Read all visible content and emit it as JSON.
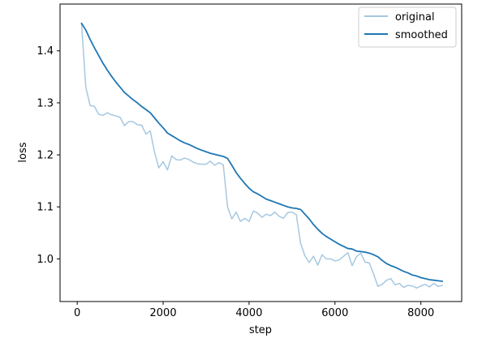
{
  "chart_data": {
    "type": "line",
    "xlabel": "step",
    "ylabel": "loss",
    "xlim": [
      -400,
      8950
    ],
    "ylim": [
      0.918,
      1.49
    ],
    "xticks": [
      0,
      2000,
      4000,
      6000,
      8000
    ],
    "xtick_labels": [
      "0",
      "2000",
      "4000",
      "6000",
      "8000"
    ],
    "yticks": [
      1.0,
      1.1,
      1.2,
      1.3,
      1.4
    ],
    "ytick_labels": [
      "1.0",
      "1.1",
      "1.2",
      "1.3",
      "1.4"
    ],
    "grid": false,
    "legend_position": "top-right",
    "series": [
      {
        "name": "original",
        "color": "#a6c8e0",
        "linewidth": 1.5,
        "x": [
          100,
          200,
          300,
          400,
          500,
          600,
          700,
          800,
          900,
          1000,
          1100,
          1200,
          1300,
          1400,
          1500,
          1600,
          1700,
          1800,
          1900,
          2000,
          2100,
          2200,
          2300,
          2400,
          2500,
          2600,
          2700,
          2800,
          2900,
          3000,
          3100,
          3200,
          3300,
          3400,
          3500,
          3600,
          3700,
          3800,
          3900,
          4000,
          4100,
          4200,
          4300,
          4400,
          4500,
          4600,
          4700,
          4800,
          4900,
          5000,
          5100,
          5200,
          5300,
          5400,
          5500,
          5600,
          5700,
          5800,
          5900,
          6000,
          6100,
          6200,
          6300,
          6400,
          6500,
          6600,
          6700,
          6800,
          6900,
          7000,
          7100,
          7200,
          7300,
          7400,
          7500,
          7600,
          7700,
          7800,
          7900,
          8000,
          8100,
          8200,
          8300,
          8400,
          8500
        ],
        "y": [
          1.453,
          1.33,
          1.295,
          1.293,
          1.278,
          1.276,
          1.281,
          1.277,
          1.275,
          1.272,
          1.256,
          1.264,
          1.264,
          1.258,
          1.257,
          1.24,
          1.246,
          1.205,
          1.175,
          1.187,
          1.171,
          1.198,
          1.191,
          1.19,
          1.194,
          1.191,
          1.186,
          1.183,
          1.182,
          1.182,
          1.188,
          1.18,
          1.185,
          1.181,
          1.1,
          1.077,
          1.09,
          1.072,
          1.078,
          1.072,
          1.092,
          1.088,
          1.08,
          1.086,
          1.083,
          1.09,
          1.082,
          1.078,
          1.089,
          1.09,
          1.085,
          1.03,
          1.006,
          0.993,
          1.005,
          0.988,
          1.008,
          1.0,
          1.0,
          0.996,
          0.998,
          1.005,
          1.012,
          0.987,
          1.004,
          1.011,
          0.994,
          0.992,
          0.971,
          0.947,
          0.951,
          0.959,
          0.962,
          0.95,
          0.953,
          0.945,
          0.949,
          0.948,
          0.944,
          0.948,
          0.951,
          0.946,
          0.953,
          0.947,
          0.949
        ]
      },
      {
        "name": "smoothed",
        "color": "#1f77b4",
        "linewidth": 1.8,
        "x": [
          100,
          200,
          300,
          400,
          500,
          600,
          700,
          800,
          900,
          1000,
          1100,
          1200,
          1300,
          1400,
          1500,
          1600,
          1700,
          1800,
          1900,
          2000,
          2100,
          2200,
          2300,
          2400,
          2500,
          2600,
          2700,
          2800,
          2900,
          3000,
          3100,
          3200,
          3300,
          3400,
          3500,
          3600,
          3700,
          3800,
          3900,
          4000,
          4100,
          4200,
          4300,
          4400,
          4500,
          4600,
          4700,
          4800,
          4900,
          5000,
          5100,
          5200,
          5300,
          5400,
          5500,
          5600,
          5700,
          5800,
          5900,
          6000,
          6100,
          6200,
          6300,
          6400,
          6500,
          6600,
          6700,
          6800,
          6900,
          7000,
          7100,
          7200,
          7300,
          7400,
          7500,
          7600,
          7700,
          7800,
          7900,
          8000,
          8100,
          8200,
          8300,
          8400,
          8500
        ],
        "y": [
          1.453,
          1.44,
          1.422,
          1.406,
          1.391,
          1.376,
          1.363,
          1.351,
          1.34,
          1.33,
          1.32,
          1.313,
          1.306,
          1.3,
          1.293,
          1.287,
          1.281,
          1.271,
          1.261,
          1.252,
          1.242,
          1.237,
          1.232,
          1.227,
          1.223,
          1.22,
          1.216,
          1.212,
          1.209,
          1.206,
          1.203,
          1.201,
          1.199,
          1.197,
          1.193,
          1.18,
          1.166,
          1.155,
          1.145,
          1.136,
          1.129,
          1.125,
          1.12,
          1.115,
          1.112,
          1.109,
          1.106,
          1.103,
          1.1,
          1.098,
          1.097,
          1.095,
          1.086,
          1.077,
          1.066,
          1.057,
          1.049,
          1.043,
          1.038,
          1.033,
          1.028,
          1.024,
          1.02,
          1.019,
          1.015,
          1.014,
          1.013,
          1.011,
          1.008,
          1.004,
          0.997,
          0.991,
          0.987,
          0.984,
          0.98,
          0.976,
          0.973,
          0.969,
          0.967,
          0.964,
          0.962,
          0.96,
          0.959,
          0.958,
          0.957
        ]
      }
    ]
  }
}
